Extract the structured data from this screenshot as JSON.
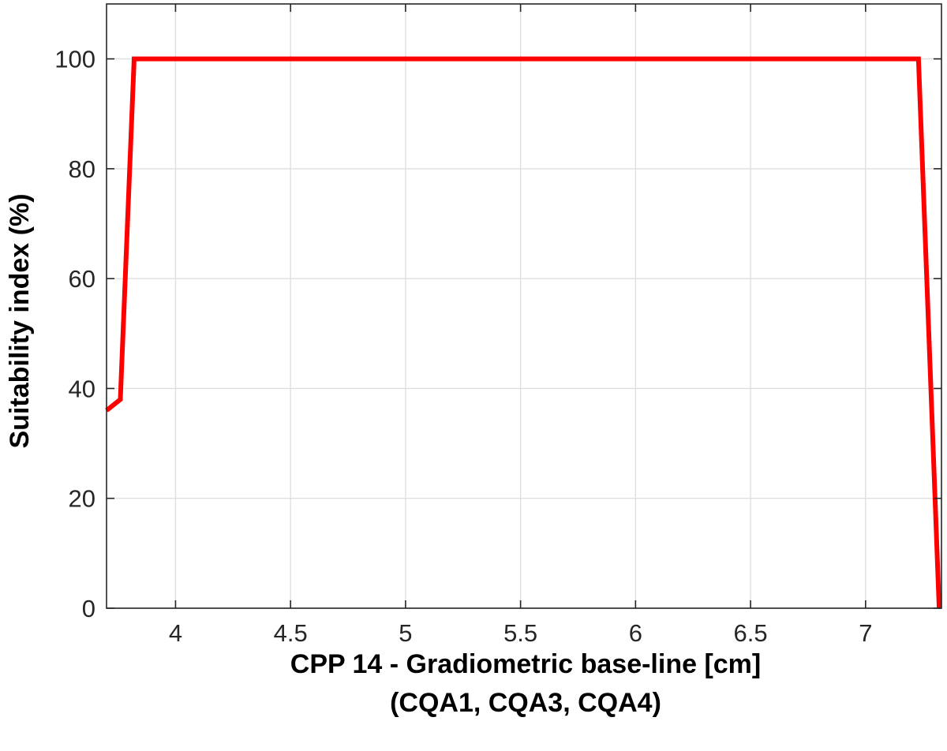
{
  "chart_data": {
    "type": "line",
    "title": "",
    "xlabel": "CPP 14 - Gradiometric base-line [cm]",
    "xlabel_line2": "(CQA1, CQA3, CQA4)",
    "ylabel": "Suitability index (%)",
    "xlim": [
      3.7,
      7.33
    ],
    "ylim": [
      0,
      110
    ],
    "xticks": [
      4,
      4.5,
      5,
      5.5,
      6,
      6.5,
      7
    ],
    "xtick_labels": [
      "4",
      "4.5",
      "5",
      "5.5",
      "6",
      "6.5",
      "7"
    ],
    "yticks": [
      0,
      20,
      40,
      60,
      80,
      100
    ],
    "ytick_labels": [
      "0",
      "20",
      "40",
      "60",
      "80",
      "100"
    ],
    "grid": true,
    "series": [
      {
        "color": "#ff0000",
        "x": [
          3.7,
          3.76,
          3.82,
          7.23,
          7.32
        ],
        "y": [
          36,
          38,
          100,
          100,
          0
        ]
      }
    ]
  }
}
